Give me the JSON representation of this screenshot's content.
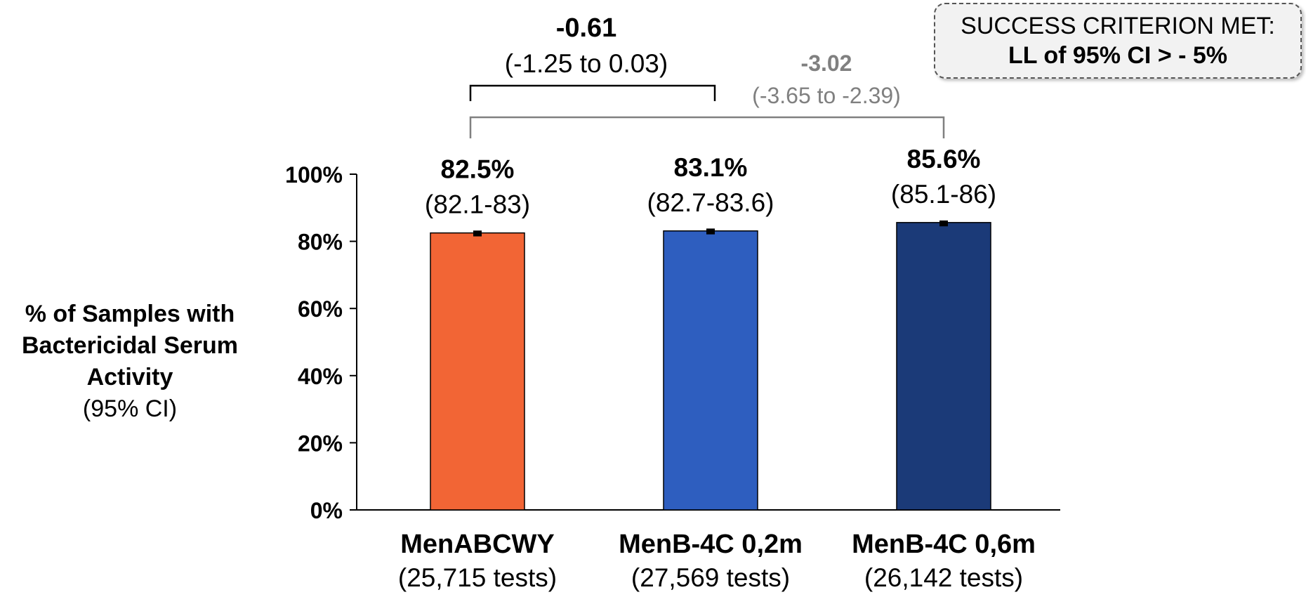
{
  "chart_data": {
    "type": "bar",
    "categories": [
      "MenABCWY",
      "MenB-4C 0,2m",
      "MenB-4C 0,6m"
    ],
    "category_sublabels": [
      "(25,715 tests)",
      "(27,569 tests)",
      "(26,142 tests)"
    ],
    "values": [
      82.5,
      83.1,
      85.6
    ],
    "ci_lower": [
      82.1,
      82.7,
      85.1
    ],
    "ci_upper": [
      83.0,
      83.6,
      86.0
    ],
    "value_labels": [
      "82.5%",
      "83.1%",
      "85.6%"
    ],
    "ci_labels": [
      "(82.1-83)",
      "(82.7-83.6)",
      "(85.1-86)"
    ],
    "colors": [
      "#F26535",
      "#2E5EBF",
      "#1B3A78"
    ],
    "ylim": [
      0,
      100
    ],
    "yticks": [
      0,
      20,
      40,
      60,
      80,
      100
    ],
    "ytick_labels": [
      "0%",
      "20%",
      "40%",
      "60%",
      "80%",
      "100%"
    ],
    "ylabel": "% of Samples with Bactericidal Serum Activity",
    "ylabel_unit": "(95% CI)",
    "grid": false,
    "comparisons": [
      {
        "from": 0,
        "to": 1,
        "diff": "-0.61",
        "ci": "(-1.25 to 0.03)",
        "color": "#000000"
      },
      {
        "from": 0,
        "to": 2,
        "diff": "-3.02",
        "ci": "(-3.65  to -2.39)",
        "color": "#808080"
      }
    ]
  },
  "criterion": {
    "line1": "SUCCESS CRITERION MET:",
    "line2": "LL of 95% CI > - 5%"
  }
}
